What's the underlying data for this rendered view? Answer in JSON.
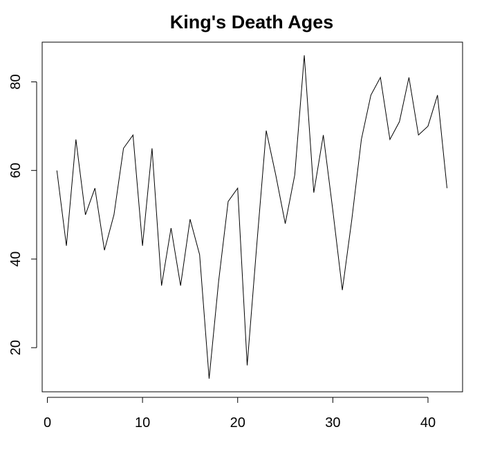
{
  "chart_data": {
    "type": "line",
    "title": "King's Death Ages",
    "xlabel": "",
    "ylabel": "",
    "xlim": [
      0,
      42
    ],
    "ylim": [
      13,
      86
    ],
    "x_ticks": [
      0,
      10,
      20,
      30,
      40
    ],
    "y_ticks": [
      20,
      40,
      60,
      80
    ],
    "grid": false,
    "series": [
      {
        "x": [
          1,
          2,
          3,
          4,
          5,
          6,
          7,
          8,
          9,
          10,
          11,
          12,
          13,
          14,
          15,
          16,
          17,
          18,
          19,
          20,
          21,
          22,
          23,
          24,
          25,
          26,
          27,
          28,
          29,
          30,
          31,
          32,
          33,
          34,
          35,
          36,
          37,
          38,
          39,
          40,
          41,
          42
        ],
        "values": [
          60,
          43,
          67,
          50,
          56,
          42,
          50,
          65,
          68,
          43,
          65,
          34,
          47,
          34,
          49,
          41,
          13,
          35,
          53,
          56,
          16,
          43,
          69,
          59,
          48,
          59,
          86,
          55,
          68,
          51,
          33,
          49,
          67,
          77,
          81,
          67,
          71,
          81,
          68,
          70,
          77,
          56
        ],
        "color": "#000000"
      }
    ]
  }
}
